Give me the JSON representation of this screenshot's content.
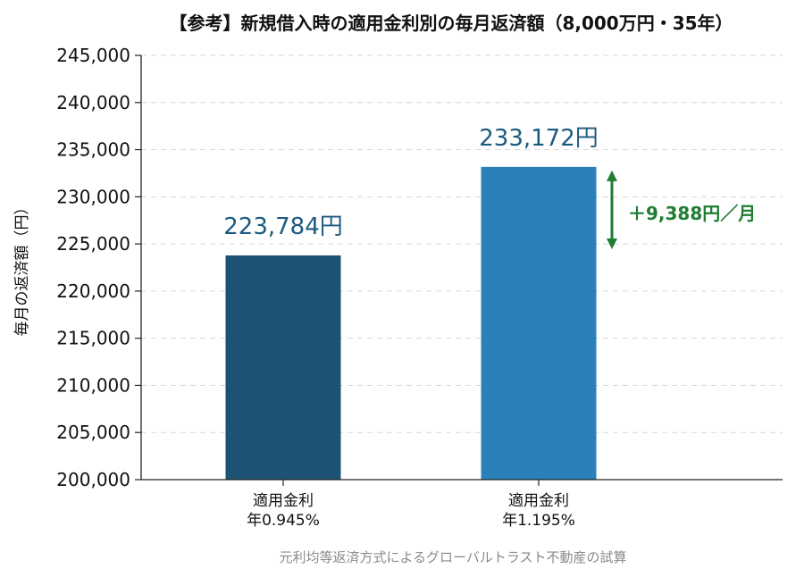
{
  "chart_data": {
    "type": "bar",
    "title": "【参考】新規借入時の適用金利別の毎月返済額（8,000万円・35年）",
    "ylabel": "毎月の返済額（円）",
    "categories": [
      {
        "line1": "適用金利",
        "line2": "年0.945%"
      },
      {
        "line1": "適用金利",
        "line2": "年1.195%"
      }
    ],
    "values": [
      223784,
      233172
    ],
    "value_labels": [
      "223,784円",
      "233,172円"
    ],
    "colors": [
      "#1c5273",
      "#2b80b9"
    ],
    "ylim": [
      200000,
      245000
    ],
    "yticks": [
      200000,
      205000,
      210000,
      215000,
      220000,
      225000,
      230000,
      235000,
      240000,
      245000
    ],
    "ytick_labels": [
      "200,000",
      "205,000",
      "210,000",
      "215,000",
      "220,000",
      "225,000",
      "230,000",
      "235,000",
      "240,000",
      "245,000"
    ],
    "grid": true,
    "annotation": {
      "text": "＋9,388円／月",
      "color": "#1e7d33"
    },
    "footnote": "元利均等返済方式によるグローバルトラスト不動産の試算"
  }
}
